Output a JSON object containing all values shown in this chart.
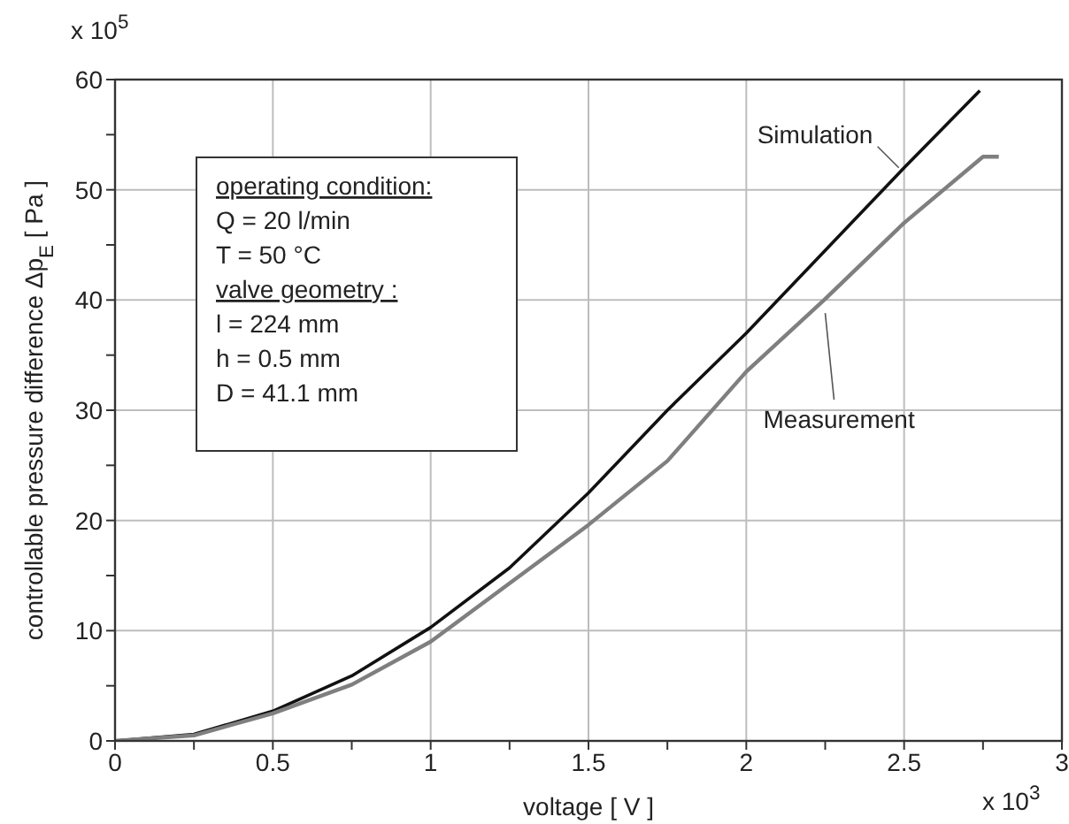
{
  "chart_data": {
    "type": "line",
    "xlabel": "voltage [ V ]",
    "ylabel": "controllable pressure difference Δp$_{E}$ [ Pa ]",
    "annotations": [
      "x 10$^{5}$",
      "x 10$^{3}$",
      "operating condition:",
      "Q = 20 l/min",
      "T = 50 °C",
      "valve geometry :",
      "l = 224 mm",
      "h = 0.5 mm",
      "D = 41.1 mm"
    ],
    "series": [
      {
        "name": "Simulation",
        "color": "#111111",
        "x": [
          0,
          0.25,
          0.5,
          0.75,
          1,
          1.25,
          1.5,
          1.75,
          2,
          2.25,
          2.5,
          2.74
        ],
        "values": [
          0,
          0.6,
          2.7,
          5.9,
          10.3,
          15.7,
          22.5,
          30.0,
          37.0,
          44.5,
          52.0,
          59.0
        ]
      },
      {
        "name": "Measurement",
        "color": "#7f7f7f",
        "x": [
          0,
          0.25,
          0.5,
          0.75,
          1,
          1.25,
          1.5,
          1.75,
          2,
          2.25,
          2.5,
          2.75,
          2.8
        ],
        "values": [
          0,
          0.5,
          2.5,
          5.1,
          9.0,
          14.3,
          19.6,
          25.4,
          33.5,
          40.1,
          47.0,
          53.0,
          53.0
        ]
      }
    ],
    "xlim": [
      0,
      3
    ],
    "xticks": [
      0,
      {
        "value": 0.25,
        "label": null
      },
      0.5,
      {
        "value": 0.75,
        "label": null
      },
      1,
      {
        "value": 1.25,
        "label": null
      },
      1.5,
      {
        "value": 1.75,
        "label": null
      },
      2,
      {
        "value": 2.25,
        "label": null
      },
      2.5,
      {
        "value": 2.75,
        "label": null
      },
      3
    ],
    "ylim": [
      0,
      60
    ],
    "yticks": [
      0,
      {
        "value": 5,
        "label": null
      },
      10,
      {
        "value": 15,
        "label": null
      },
      20,
      {
        "value": 25,
        "label": null
      },
      30,
      {
        "value": 35,
        "label": null
      },
      40,
      {
        "value": 45,
        "label": null
      },
      50,
      {
        "value": 55,
        "label": null
      },
      60
    ],
    "grid": true,
    "marker": "none",
    "line_style": "solid"
  }
}
